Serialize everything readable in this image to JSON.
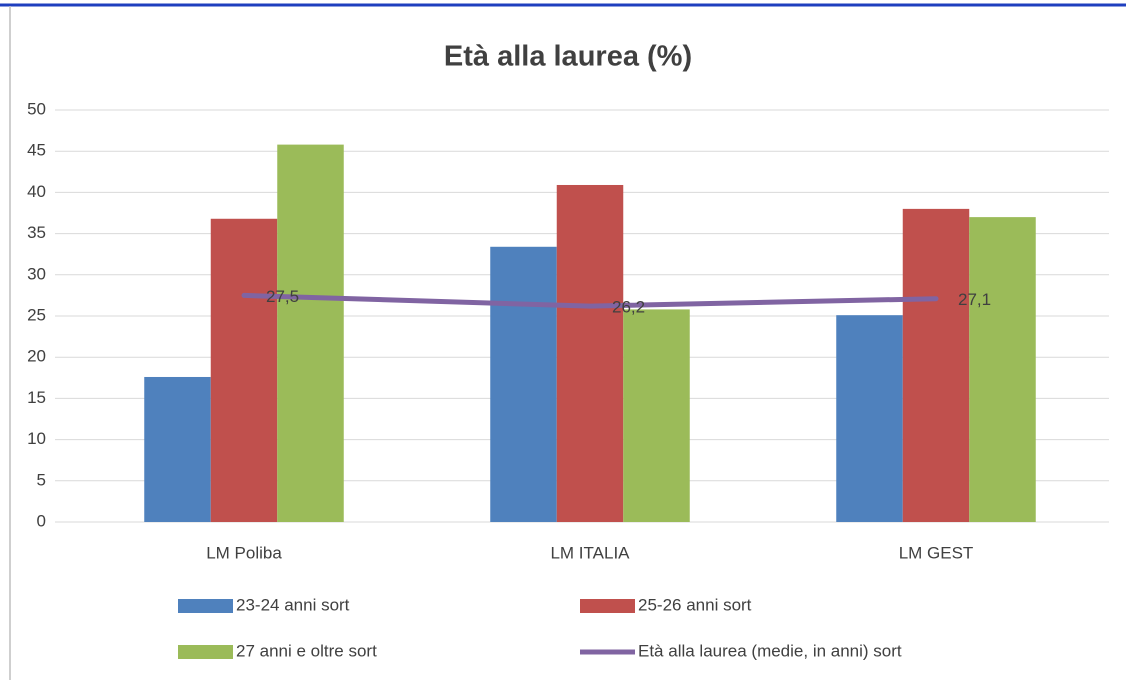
{
  "chart_data": {
    "type": "bar",
    "title": "Età alla laurea (%)",
    "categories": [
      "LM Poliba",
      "LM ITALIA",
      "LM GEST"
    ],
    "series": [
      {
        "name": "23-24 anni sort",
        "color": "#4f81bd",
        "values": [
          17.6,
          33.4,
          25.1
        ]
      },
      {
        "name": "25-26 anni sort",
        "color": "#c0504d",
        "values": [
          36.8,
          40.9,
          38.0
        ]
      },
      {
        "name": "27 anni e oltre sort",
        "color": "#9bbb59",
        "values": [
          45.8,
          25.8,
          37.0
        ]
      },
      {
        "name": "Età alla laurea (medie, in anni) sort",
        "color": "#8064a2",
        "type": "line",
        "values": [
          27.5,
          26.2,
          27.1
        ],
        "value_labels": [
          "27,5",
          "26,2",
          "27,1"
        ]
      }
    ],
    "ylim": [
      0,
      50
    ],
    "yticks": [
      0,
      5,
      10,
      15,
      20,
      25,
      30,
      35,
      40,
      45,
      50
    ],
    "grid": true,
    "legend": "bottom"
  }
}
